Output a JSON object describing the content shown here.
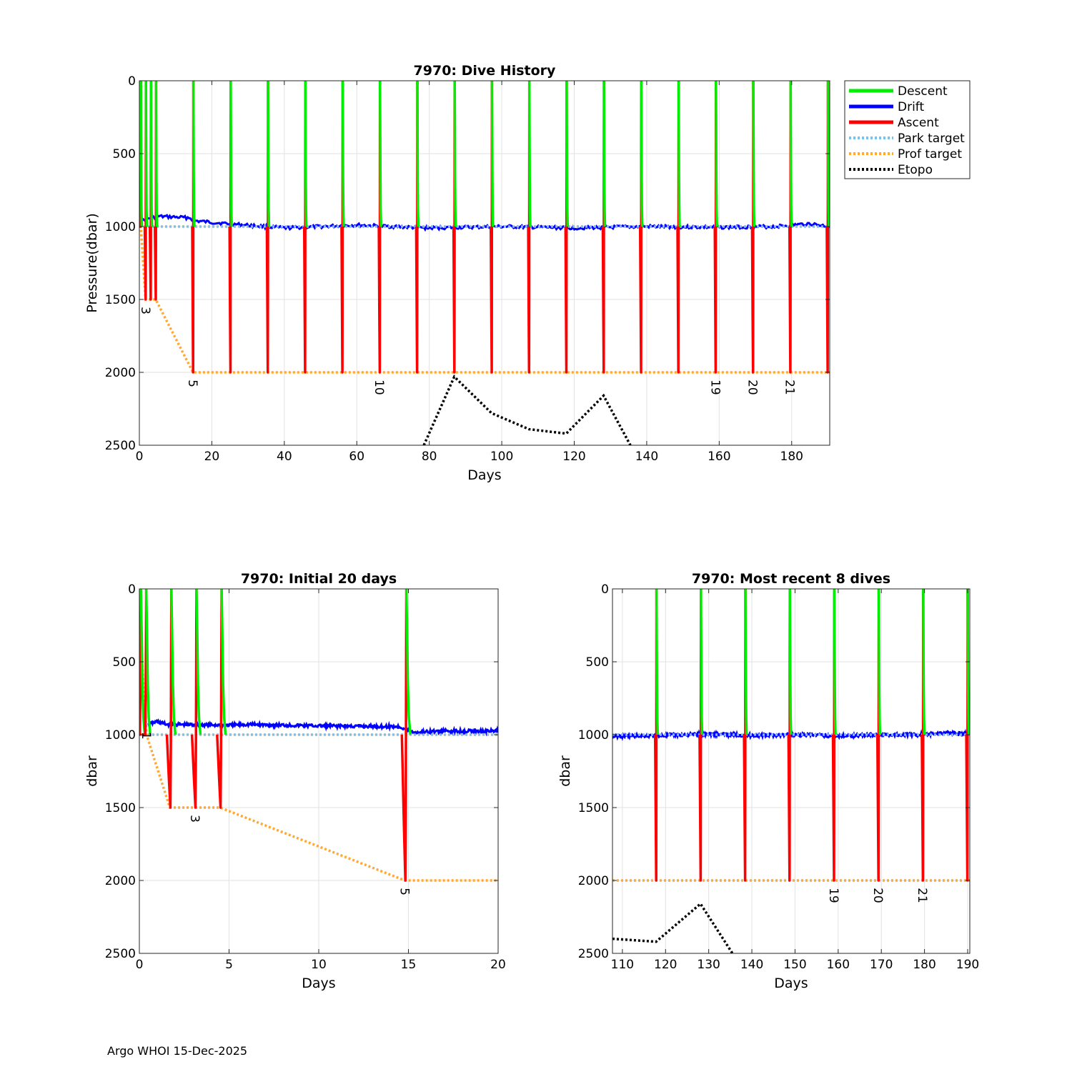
{
  "footer": "Argo WHOI 15-Dec-2025",
  "legend": {
    "entries": [
      {
        "label": "Descent",
        "color": "#00ee00",
        "style": "solid"
      },
      {
        "label": "Drift",
        "color": "#0000ff",
        "style": "solid"
      },
      {
        "label": "Ascent",
        "color": "#ff0000",
        "style": "solid"
      },
      {
        "label": "Park target",
        "color": "#7ec0e6",
        "style": "dotted"
      },
      {
        "label": "Prof target",
        "color": "#ffa833",
        "style": "dotted"
      },
      {
        "label": "Etopo",
        "color": "#000000",
        "style": "dotted"
      }
    ]
  },
  "chart_data": [
    {
      "id": "history",
      "type": "line",
      "title": "7970: Dive History",
      "xlabel": "Days",
      "ylabel": "Pressure(dbar)",
      "xlim": [
        0,
        190.5
      ],
      "ylim": [
        0,
        2500
      ],
      "xticks": [
        0,
        20,
        40,
        60,
        80,
        100,
        120,
        140,
        160,
        180
      ],
      "yticks": [
        0,
        500,
        1000,
        1500,
        2000,
        2500
      ],
      "profiles": [
        {
          "x": 0.0,
          "depth": 1000
        },
        {
          "x": 0.3,
          "depth": 1000
        },
        {
          "x": 1.7,
          "depth": 1500
        },
        {
          "x": 3.1,
          "depth": 1500
        },
        {
          "x": 4.5,
          "depth": 1500
        },
        {
          "x": 14.8,
          "depth": 2000
        },
        {
          "x": 25.1,
          "depth": 2000
        },
        {
          "x": 35.4,
          "depth": 2000
        },
        {
          "x": 45.7,
          "depth": 2000
        },
        {
          "x": 56.0,
          "depth": 2000
        },
        {
          "x": 66.3,
          "depth": 2000
        },
        {
          "x": 76.6,
          "depth": 2000
        },
        {
          "x": 86.9,
          "depth": 2000
        },
        {
          "x": 97.2,
          "depth": 2000
        },
        {
          "x": 107.5,
          "depth": 2000
        },
        {
          "x": 117.8,
          "depth": 2000
        },
        {
          "x": 128.1,
          "depth": 2000
        },
        {
          "x": 138.4,
          "depth": 2000
        },
        {
          "x": 148.7,
          "depth": 2000
        },
        {
          "x": 159.0,
          "depth": 2000
        },
        {
          "x": 169.3,
          "depth": 2000
        },
        {
          "x": 179.6,
          "depth": 2000
        },
        {
          "x": 189.9,
          "depth": 2000
        }
      ],
      "park_target": {
        "x": [
          0,
          190.5
        ],
        "y": [
          1000,
          1000
        ]
      },
      "prof_target": {
        "x": [
          0,
          0.4,
          1.7,
          4.5,
          14.8,
          190.5
        ],
        "y": [
          200,
          1000,
          1500,
          1500,
          2000,
          2000
        ]
      },
      "drift_level": {
        "x": [
          0,
          5,
          14,
          15,
          24,
          40,
          60,
          80,
          100,
          120,
          140,
          160,
          175,
          185,
          190.5
        ],
        "y": [
          960,
          930,
          940,
          960,
          980,
          1010,
          990,
          1010,
          1000,
          1010,
          1000,
          1005,
          1000,
          980,
          1000
        ]
      },
      "etopo": {
        "x": [
          78.5,
          86.9,
          97.2,
          107.5,
          117.8,
          128.1,
          135.5
        ],
        "y": [
          2500,
          2030,
          2280,
          2390,
          2420,
          2160,
          2500
        ]
      },
      "cycle_labels": [
        {
          "x": 1.8,
          "y": 1530,
          "text": "3"
        },
        {
          "x": 14.8,
          "y": 2030,
          "text": "5"
        },
        {
          "x": 66.3,
          "y": 2030,
          "text": "10"
        },
        {
          "x": 159.0,
          "y": 2030,
          "text": "19"
        },
        {
          "x": 169.3,
          "y": 2030,
          "text": "20"
        },
        {
          "x": 179.6,
          "y": 2030,
          "text": "21"
        }
      ]
    },
    {
      "id": "initial",
      "type": "line",
      "title": "7970: Initial 20 days",
      "xlabel": "Days",
      "ylabel": "dbar",
      "xlim": [
        0,
        20
      ],
      "ylim": [
        0,
        2500
      ],
      "xticks": [
        0,
        5,
        10,
        15,
        20
      ],
      "yticks": [
        0,
        500,
        1000,
        1500,
        2000,
        2500
      ],
      "profiles": [
        {
          "x": 0.0,
          "depth": 1000
        },
        {
          "x": 0.3,
          "depth": 1000
        },
        {
          "x": 1.7,
          "depth": 1500
        },
        {
          "x": 3.1,
          "depth": 1500
        },
        {
          "x": 4.5,
          "depth": 1500
        },
        {
          "x": 14.8,
          "depth": 2000
        }
      ],
      "park_target": {
        "x": [
          0,
          20
        ],
        "y": [
          1000,
          1000
        ]
      },
      "prof_target": {
        "x": [
          0,
          0.4,
          1.7,
          4.5,
          14.8,
          20
        ],
        "y": [
          200,
          1000,
          1500,
          1500,
          2000,
          2000
        ]
      },
      "drift_level": {
        "x": [
          0.5,
          1.0,
          1.5,
          5,
          6,
          10,
          14.5,
          15.3,
          17,
          20
        ],
        "y": [
          930,
          910,
          930,
          935,
          930,
          940,
          945,
          985,
          975,
          975
        ]
      },
      "etopo": null,
      "cycle_labels": [
        {
          "x": 0.4,
          "y": 960,
          "text": "1"
        },
        {
          "x": 3.1,
          "y": 1530,
          "text": "3"
        },
        {
          "x": 14.8,
          "y": 2030,
          "text": "5"
        }
      ]
    },
    {
      "id": "recent",
      "type": "line",
      "title": "7970: Most recent 8 dives",
      "xlabel": "Days",
      "ylabel": "dbar",
      "xlim": [
        107.7,
        190.5
      ],
      "ylim": [
        0,
        2500
      ],
      "xticks": [
        110,
        120,
        130,
        140,
        150,
        160,
        170,
        180,
        190
      ],
      "yticks": [
        0,
        500,
        1000,
        1500,
        2000,
        2500
      ],
      "profiles": [
        {
          "x": 117.8,
          "depth": 2000
        },
        {
          "x": 128.1,
          "depth": 2000
        },
        {
          "x": 138.4,
          "depth": 2000
        },
        {
          "x": 148.7,
          "depth": 2000
        },
        {
          "x": 159.0,
          "depth": 2000
        },
        {
          "x": 169.3,
          "depth": 2000
        },
        {
          "x": 179.6,
          "depth": 2000
        },
        {
          "x": 189.9,
          "depth": 2000
        }
      ],
      "park_target": {
        "x": [
          107.7,
          190.5
        ],
        "y": [
          1000,
          1000
        ]
      },
      "prof_target": {
        "x": [
          107.7,
          190.5
        ],
        "y": [
          2000,
          2000
        ]
      },
      "drift_level": {
        "x": [
          107.7,
          120,
          130,
          140,
          150,
          160,
          170,
          180,
          185,
          190.5
        ],
        "y": [
          1010,
          1005,
          995,
          1005,
          1000,
          1008,
          1000,
          1000,
          985,
          1000
        ]
      },
      "etopo": {
        "x": [
          107.7,
          117.8,
          128.1,
          135.5
        ],
        "y": [
          2400,
          2420,
          2160,
          2500
        ]
      },
      "cycle_labels": [
        {
          "x": 159.0,
          "y": 2030,
          "text": "19"
        },
        {
          "x": 169.3,
          "y": 2030,
          "text": "20"
        },
        {
          "x": 179.6,
          "y": 2030,
          "text": "21"
        }
      ]
    }
  ]
}
